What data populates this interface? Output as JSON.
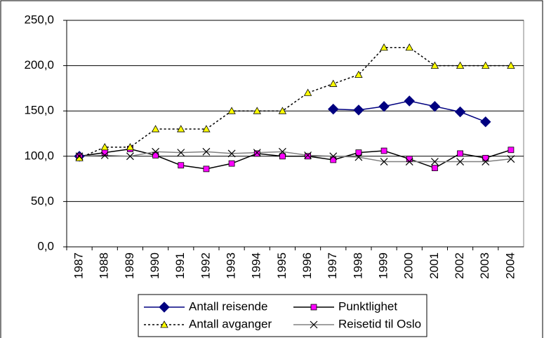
{
  "chart_data": {
    "type": "line",
    "categories": [
      "1987",
      "1988",
      "1989",
      "1990",
      "1991",
      "1992",
      "1993",
      "1994",
      "1995",
      "1996",
      "1997",
      "1998",
      "1999",
      "2000",
      "2001",
      "2002",
      "2003",
      "2004"
    ],
    "series": [
      {
        "name": "Antall reisende",
        "color": "#000080",
        "marker": "diamond",
        "marker_color": "#000080",
        "dash": "solid",
        "values": [
          100,
          null,
          null,
          null,
          null,
          null,
          null,
          null,
          null,
          null,
          152,
          151,
          155,
          161,
          155,
          149,
          138,
          null
        ]
      },
      {
        "name": "Punktlighet",
        "color": "#000000",
        "marker": "square",
        "marker_color": "#ff00ff",
        "dash": "solid",
        "values": [
          100,
          104,
          108,
          101,
          90,
          86,
          92,
          103,
          100,
          100,
          96,
          104,
          106,
          97,
          87,
          103,
          98,
          107
        ]
      },
      {
        "name": "Antall avganger",
        "color": "#000000",
        "marker": "triangle",
        "marker_color": "#ffff00",
        "dash": "dotted",
        "values": [
          98,
          110,
          110,
          130,
          130,
          130,
          150,
          150,
          150,
          170,
          180,
          190,
          220,
          220,
          200,
          200,
          200,
          200
        ]
      },
      {
        "name": "Reisetid til Oslo",
        "color": "#808080",
        "marker": "x",
        "marker_color": "#000000",
        "dash": "solid",
        "values": [
          100,
          101,
          100,
          105,
          104,
          105,
          103,
          104,
          105,
          101,
          100,
          99,
          94,
          94,
          94,
          94,
          94,
          97
        ]
      }
    ],
    "ylim": [
      0,
      250
    ],
    "yticks": [
      {
        "value": 0,
        "label": "0,0"
      },
      {
        "value": 50,
        "label": "50,0"
      },
      {
        "value": 100,
        "label": "100,0"
      },
      {
        "value": 150,
        "label": "150,0"
      },
      {
        "value": 200,
        "label": "200,0"
      },
      {
        "value": 250,
        "label": "250,0"
      }
    ],
    "grid": true,
    "legend": "bottom"
  }
}
